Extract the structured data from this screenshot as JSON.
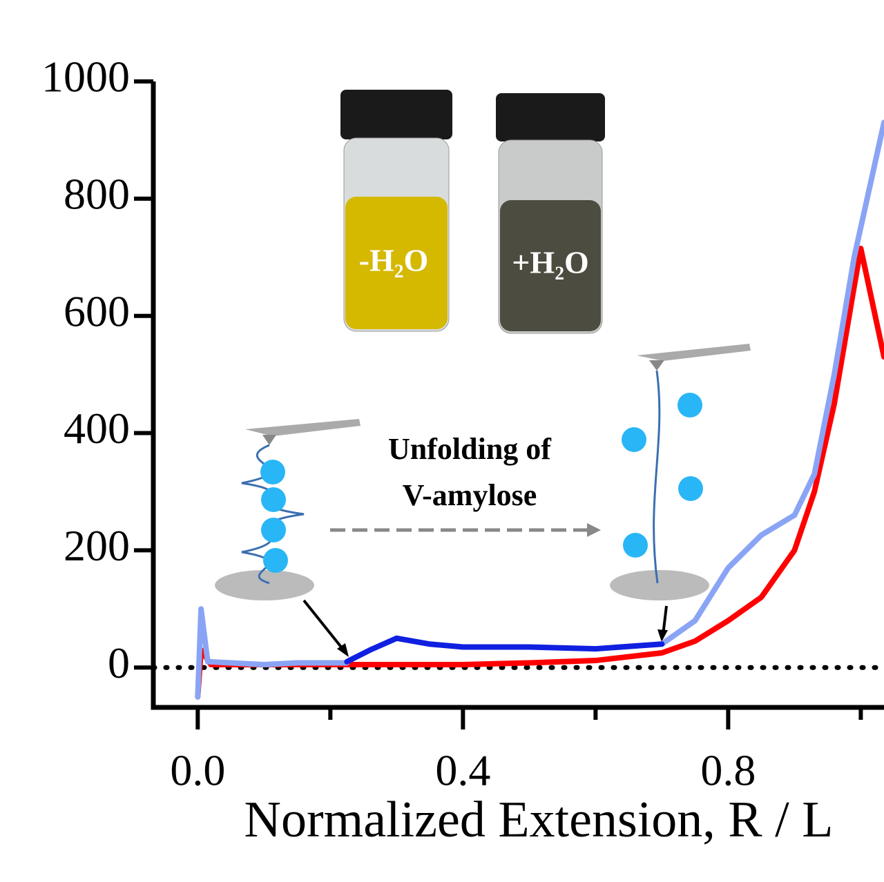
{
  "chart_data": {
    "type": "line",
    "xlabel": "Normalized Extension, R / L",
    "annotations": [
      "Unfolding of",
      "V-amylose",
      "-H₂O",
      "+H₂O"
    ],
    "xlim": [
      -0.067,
      1.035
    ],
    "ylim": [
      -68,
      1000
    ],
    "xticks": [
      {
        "value": 0,
        "label": "0.0"
      },
      0.4,
      0.8
    ],
    "xminor": [
      0.2,
      0.6,
      1.0
    ],
    "yticks": [
      0,
      200,
      400,
      600,
      800,
      1000
    ],
    "hline": 0,
    "series": [
      {
        "color": "#ff0000",
        "x": [
          0.0,
          0.005,
          0.02,
          0.1,
          0.2,
          0.3,
          0.4,
          0.5,
          0.6,
          0.7,
          0.75,
          0.8,
          0.85,
          0.9,
          0.93,
          0.96,
          0.99,
          1.0,
          1.035
        ],
        "values": [
          -50,
          30,
          5,
          5,
          5,
          5,
          5,
          8,
          12,
          25,
          45,
          80,
          120,
          200,
          300,
          450,
          650,
          715,
          530
        ]
      },
      {
        "color": "#8aa4f5",
        "x": [
          0.0,
          0.005,
          0.015,
          0.1,
          0.15,
          0.225,
          0.5,
          0.7,
          0.75,
          0.8,
          0.85,
          0.9,
          0.93,
          0.96,
          0.99,
          1.035
        ],
        "values": [
          -50,
          100,
          10,
          5,
          8,
          8,
          null,
          40,
          80,
          170,
          226,
          260,
          330,
          500,
          700,
          930
        ]
      },
      {
        "color": "#1020e0",
        "x": [
          0.225,
          0.26,
          0.3,
          0.35,
          0.4,
          0.5,
          0.6,
          0.7
        ],
        "values": [
          10,
          30,
          50,
          40,
          35,
          35,
          32,
          40
        ]
      }
    ]
  }
}
